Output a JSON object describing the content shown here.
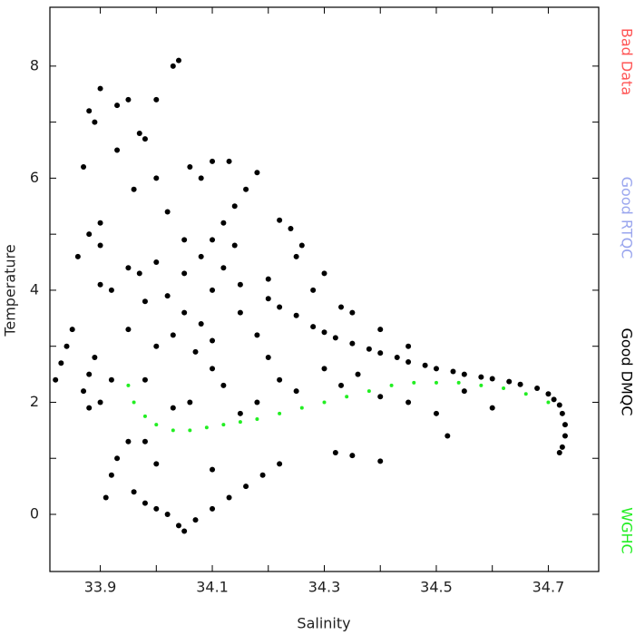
{
  "chart_data": {
    "type": "scatter",
    "x_label": "Salinity",
    "y_label": "Temperature",
    "xlim": [
      33.81,
      34.79
    ],
    "ylim": [
      -1.02,
      9.05
    ],
    "xticks": [
      33.9,
      34.1,
      34.3,
      34.5,
      34.7
    ],
    "xminorticks": [
      34.0,
      34.2,
      34.4,
      34.6
    ],
    "yticks": [
      0,
      2,
      4,
      6,
      8
    ],
    "yminorticks": [
      1,
      3,
      5,
      7
    ],
    "series": [
      {
        "name": "Bad Data",
        "color": "#ff5555",
        "x": [],
        "values": []
      },
      {
        "name": "Good RTQC",
        "color": "#9aa6ee",
        "x": [],
        "values": []
      },
      {
        "name": "Good DMQC",
        "color": "#000000",
        "x": [
          34.15,
          34.2,
          34.22,
          34.25,
          34.28,
          34.3,
          34.32,
          34.35,
          34.38,
          34.4,
          34.43,
          34.45,
          34.48,
          34.5,
          34.53,
          34.55,
          34.58,
          34.6,
          34.63,
          34.65,
          34.68,
          34.7,
          34.71,
          34.72,
          34.725,
          34.73,
          34.73,
          34.725,
          34.72,
          34.3,
          34.26,
          34.24,
          34.22,
          34.35,
          34.4,
          34.45,
          34.05,
          34.08,
          34.1,
          34.12,
          34.14,
          34.16,
          34.18,
          33.88,
          33.9,
          33.9,
          33.92,
          33.95,
          33.97,
          34.0,
          33.98,
          34.02,
          34.05,
          34.03,
          34.07,
          34.1,
          34.12,
          34.0,
          33.95,
          34.08,
          34.1,
          34.12,
          34.15,
          34.18,
          34.2,
          34.22,
          34.25,
          34.3,
          34.33,
          34.36,
          34.4,
          34.45,
          34.5,
          34.52,
          34.55,
          34.6,
          34.06,
          34.03,
          33.98,
          33.92,
          33.9,
          33.88,
          33.89,
          34.15,
          34.18,
          34.05,
          34.02,
          33.96,
          33.9,
          33.87,
          33.86,
          34.25,
          34.28,
          34.33,
          34.1,
          34.2,
          34.14,
          33.88,
          33.89,
          33.9,
          33.93,
          33.95,
          33.97,
          34.0,
          34.03,
          34.04,
          34.06,
          34.08,
          34.0,
          33.93,
          34.1,
          34.13,
          33.98,
          33.82,
          33.83,
          33.84,
          33.85,
          33.88,
          33.87,
          33.91,
          33.92,
          33.93,
          33.95,
          33.96,
          33.98,
          34.0,
          34.02,
          34.04,
          34.05,
          34.07,
          34.1,
          34.13,
          34.16,
          34.19,
          34.22,
          34.0,
          33.98,
          34.1,
          34.32,
          34.35,
          34.4
        ],
        "values": [
          4.1,
          3.85,
          3.7,
          3.55,
          3.35,
          3.25,
          3.15,
          3.05,
          2.95,
          2.88,
          2.8,
          2.72,
          2.66,
          2.6,
          2.55,
          2.5,
          2.45,
          2.42,
          2.37,
          2.32,
          2.25,
          2.15,
          2.05,
          1.95,
          1.8,
          1.6,
          1.4,
          1.2,
          1.1,
          4.3,
          4.8,
          5.1,
          5.25,
          3.6,
          3.3,
          3.0,
          4.3,
          4.6,
          4.9,
          5.2,
          5.5,
          5.8,
          6.1,
          5.0,
          4.8,
          4.1,
          4.0,
          4.4,
          4.3,
          4.5,
          3.8,
          3.9,
          3.6,
          3.2,
          2.9,
          2.6,
          2.3,
          3.0,
          3.3,
          3.4,
          4.0,
          4.4,
          3.6,
          3.2,
          2.8,
          2.4,
          2.2,
          2.6,
          2.3,
          2.5,
          2.1,
          2.0,
          1.8,
          1.4,
          2.2,
          1.9,
          2.0,
          1.9,
          2.4,
          2.4,
          2.0,
          2.5,
          2.8,
          1.8,
          2.0,
          4.9,
          5.4,
          5.8,
          5.2,
          6.2,
          4.6,
          4.6,
          4.0,
          3.7,
          3.1,
          4.2,
          4.8,
          7.2,
          7.0,
          7.6,
          7.3,
          7.4,
          6.8,
          7.4,
          8.0,
          8.1,
          6.2,
          6.0,
          6.0,
          6.5,
          6.3,
          6.3,
          6.7,
          2.4,
          2.7,
          3.0,
          3.3,
          1.9,
          2.2,
          0.3,
          0.7,
          1.0,
          1.3,
          0.4,
          0.2,
          0.1,
          0.0,
          -0.2,
          -0.3,
          -0.1,
          0.1,
          0.3,
          0.5,
          0.7,
          0.9,
          0.9,
          1.3,
          0.8,
          1.1,
          1.05,
          0.95
        ]
      },
      {
        "name": "WGHC",
        "color": "#22ee22",
        "x": [
          33.95,
          33.96,
          33.98,
          34.0,
          34.03,
          34.06,
          34.09,
          34.12,
          34.15,
          34.18,
          34.22,
          34.26,
          34.3,
          34.34,
          34.38,
          34.42,
          34.46,
          34.5,
          34.54,
          34.58,
          34.62,
          34.66,
          34.7
        ],
        "values": [
          2.3,
          2.0,
          1.75,
          1.6,
          1.5,
          1.5,
          1.55,
          1.6,
          1.65,
          1.7,
          1.8,
          1.9,
          2.0,
          2.1,
          2.2,
          2.3,
          2.35,
          2.35,
          2.35,
          2.3,
          2.25,
          2.15,
          2.0
        ]
      }
    ]
  }
}
